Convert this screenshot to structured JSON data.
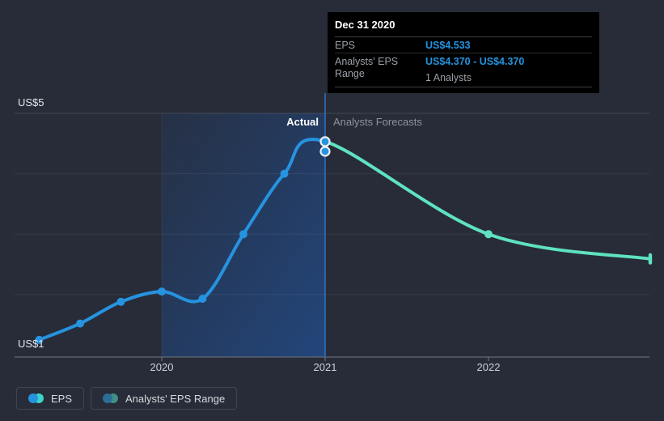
{
  "tooltip": {
    "date": "Dec 31 2020",
    "rows": [
      {
        "label": "EPS",
        "value": "US$4.533"
      },
      {
        "label": "Analysts' EPS Range",
        "value": "US$4.370 - US$4.370",
        "note": "1 Analysts"
      }
    ]
  },
  "chart_data": {
    "type": "line",
    "title": "EPS actual vs analysts forecasts",
    "y_top_label": "US$5",
    "y_bottom_label": "US$1",
    "ylim": [
      1,
      5
    ],
    "y_gridlines": [
      5,
      4,
      3,
      2
    ],
    "x_ticks": [
      {
        "t": 2020,
        "label": "2020"
      },
      {
        "t": 2021,
        "label": "2021"
      },
      {
        "t": 2022,
        "label": "2022"
      }
    ],
    "actual_label": "Actual",
    "forecast_label": "Analysts Forecasts",
    "divider_t": 2021,
    "highlight_region": {
      "from_t": 2020,
      "to_t": 2021
    },
    "series": [
      {
        "name": "EPS",
        "role": "actual",
        "color": "#2693e0",
        "points": [
          {
            "t": 2019.25,
            "v": 1.25
          },
          {
            "t": 2019.5,
            "v": 1.52
          },
          {
            "t": 2019.75,
            "v": 1.88
          },
          {
            "t": 2020,
            "v": 2.05
          },
          {
            "t": 2020.25,
            "v": 1.93
          },
          {
            "t": 2020.5,
            "v": 3.0
          },
          {
            "t": 2020.75,
            "v": 4.0
          },
          {
            "t": 2021,
            "v": 4.533
          }
        ]
      },
      {
        "name": "EPS forecast",
        "role": "forecast",
        "color": "#5fe2bf",
        "points": [
          {
            "t": 2021,
            "v": 4.533
          },
          {
            "t": 2022,
            "v": 3.0
          },
          {
            "t": 2023,
            "v": 2.59
          }
        ]
      }
    ],
    "range_point": {
      "t": 2021,
      "v": 4.37
    },
    "end_cap": {
      "t": 2023,
      "v": 2.59
    }
  },
  "legend": [
    {
      "label": "EPS",
      "colors": [
        "#2693e0",
        "#3bd4c7"
      ]
    },
    {
      "label": "Analysts' EPS Range",
      "colors": [
        "#2d6e97",
        "#3f9086"
      ]
    }
  ],
  "colors": {
    "background": "#272c38",
    "actual_line": "#2693e0",
    "forecast_line": "#5fe2bf",
    "value_text": "#2394df",
    "divider_line": "rgba(45,108,185,0.85)",
    "highlight_from": "rgba(30,90,180,0.10)",
    "highlight_to": "rgba(30,95,190,0.50)",
    "dot_ring": "#e9eef3"
  }
}
